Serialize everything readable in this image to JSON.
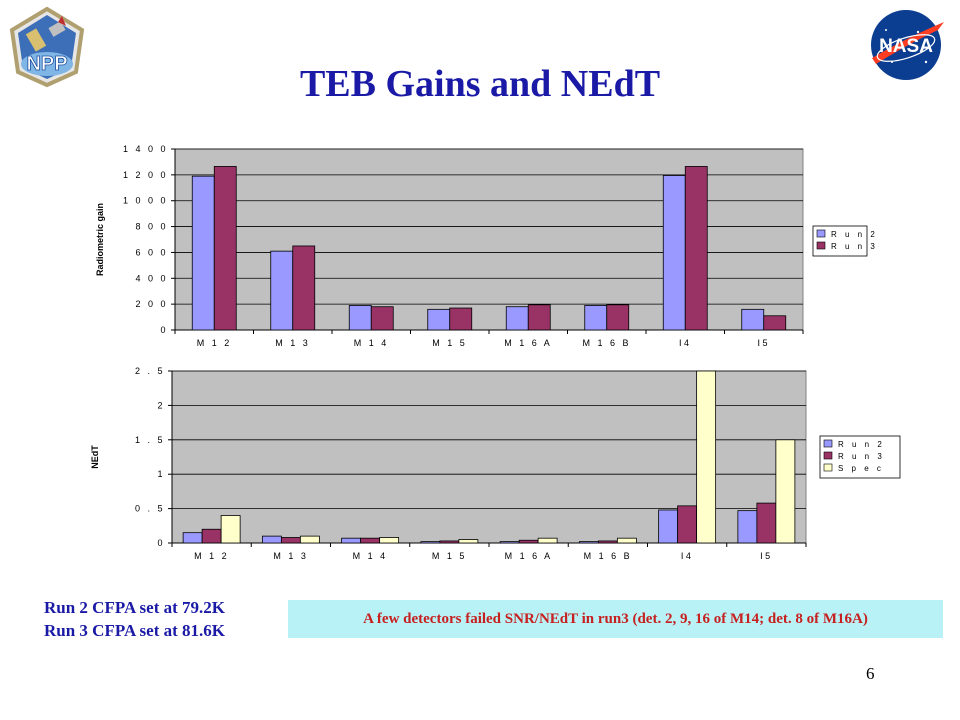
{
  "slide": {
    "title": "TEB Gains and NEdT",
    "page_number": "6",
    "run_notes": [
      "Run 2 CFPA set at 79.2K",
      "Run 3 CFPA set at 81.6K"
    ],
    "note_box": "A few detectors failed SNR/NEdT in run3 (det. 2, 9, 16 of M14; det. 8 of M16A)",
    "logos": {
      "left": "NPP",
      "right": "NASA"
    },
    "colors": {
      "title": "#1a1aa6",
      "note_text": "#c62020",
      "note_bg": "#b9f2f6",
      "run2": "#9999ff",
      "run3": "#993366",
      "spec": "#ffffcc",
      "plot_bg": "#c0c0c0"
    }
  },
  "chart_data": [
    {
      "type": "bar",
      "categories": [
        "M 1 2",
        "M 1 3",
        "M 1 4",
        "M 1 5",
        "M 1 6 A",
        "M 1 6 B",
        "I4",
        "I5"
      ],
      "ylabel": "Radiometric gain",
      "ylim": [
        0,
        1400
      ],
      "yticks": [
        0,
        200,
        400,
        600,
        800,
        1000,
        1200,
        1400
      ],
      "ytick_labels": [
        "0",
        "2 0 0",
        "4 0 0",
        "6 0 0",
        "8 0 0",
        "1 0 0 0",
        "1 2 0 0",
        "1 4 0 0"
      ],
      "grid": true,
      "legend_position": "right",
      "legend_labels": [
        "R u n 2",
        "R u n 3"
      ],
      "series": [
        {
          "name": "Run 2",
          "values": [
            1190,
            610,
            190,
            160,
            180,
            190,
            1195,
            160
          ]
        },
        {
          "name": "Run 3",
          "values": [
            1265,
            650,
            180,
            170,
            195,
            195,
            1265,
            110
          ]
        }
      ]
    },
    {
      "type": "bar",
      "categories": [
        "M 1 2",
        "M 1 3",
        "M 1 4",
        "M 1 5",
        "M 1 6 A",
        "M 1 6 B",
        "I4",
        "I5"
      ],
      "ylabel": "NEdT",
      "ylim": [
        0,
        2.5
      ],
      "yticks": [
        0,
        0.5,
        1,
        1.5,
        2,
        2.5
      ],
      "ytick_labels": [
        "0",
        "0 . 5",
        "1",
        "1 . 5",
        "2",
        "2 . 5"
      ],
      "grid": true,
      "legend_position": "right",
      "legend_labels": [
        "R u n 2",
        "R u n 3",
        "S p e c"
      ],
      "series": [
        {
          "name": "Run 2",
          "values": [
            0.15,
            0.1,
            0.07,
            0.02,
            0.02,
            0.02,
            0.48,
            0.47
          ]
        },
        {
          "name": "Run 3",
          "values": [
            0.2,
            0.08,
            0.07,
            0.03,
            0.04,
            0.03,
            0.54,
            0.58
          ]
        },
        {
          "name": "Spec",
          "values": [
            0.4,
            0.1,
            0.08,
            0.05,
            0.07,
            0.07,
            2.5,
            1.5
          ]
        }
      ]
    }
  ]
}
